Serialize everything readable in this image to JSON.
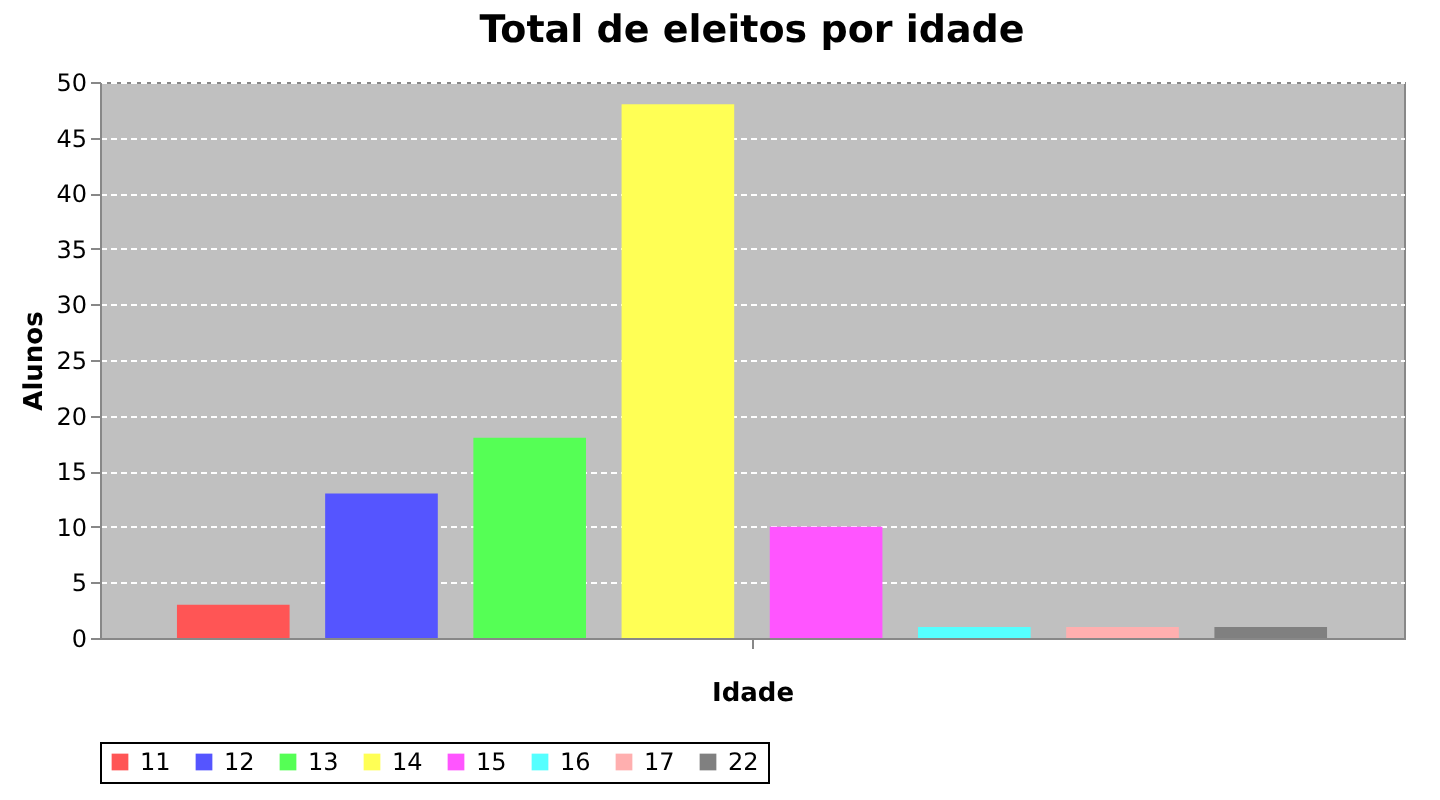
{
  "chart_data": {
    "type": "bar",
    "title": "Total de eleitos por idade",
    "xlabel": "Idade",
    "ylabel": "Alunos",
    "categories": [
      null
    ],
    "series": [
      {
        "name": "11",
        "color": "#ff5555",
        "values": [
          3
        ]
      },
      {
        "name": "12",
        "color": "#5555ff",
        "values": [
          13
        ]
      },
      {
        "name": "13",
        "color": "#55ff55",
        "values": [
          18
        ]
      },
      {
        "name": "14",
        "color": "#ffff55",
        "values": [
          48
        ]
      },
      {
        "name": "15",
        "color": "#ff55ff",
        "values": [
          10
        ]
      },
      {
        "name": "16",
        "color": "#55ffff",
        "values": [
          1
        ]
      },
      {
        "name": "17",
        "color": "#ffafaf",
        "values": [
          1
        ]
      },
      {
        "name": "22",
        "color": "#808080",
        "values": [
          1
        ]
      }
    ],
    "ylim": [
      0,
      50
    ],
    "yticks": [
      0,
      5,
      10,
      15,
      20,
      25,
      30,
      35,
      40,
      45,
      50
    ],
    "grid": "y",
    "legend": "bottom"
  }
}
